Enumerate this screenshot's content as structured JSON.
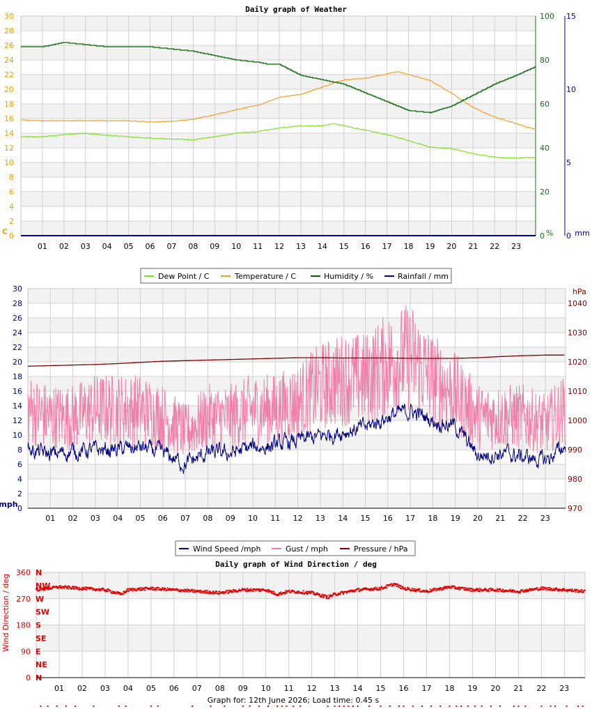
{
  "footer": "Graph for: 12th June 2026; Load time: 0.45 s",
  "chart_data": [
    {
      "type": "line",
      "title": "Daily graph of Weather",
      "x_ticks": [
        "01",
        "02",
        "03",
        "04",
        "05",
        "06",
        "07",
        "08",
        "09",
        "10",
        "11",
        "12",
        "13",
        "14",
        "15",
        "16",
        "17",
        "18",
        "19",
        "20",
        "21",
        "22",
        "23"
      ],
      "x_range": [
        0,
        23.9
      ],
      "y_left": {
        "unit": "C",
        "range": [
          0,
          30
        ],
        "ticks": [
          "0",
          "2",
          "4",
          "6",
          "8",
          "10",
          "12",
          "14",
          "16",
          "18",
          "20",
          "22",
          "24",
          "26",
          "28",
          "30"
        ],
        "color": "#e8a000"
      },
      "y_right1": {
        "unit": "%",
        "range": [
          0,
          100
        ],
        "ticks": [
          "0",
          "20",
          "40",
          "60",
          "80",
          "100"
        ],
        "color": "#1a6b1a"
      },
      "y_right2": {
        "unit": "mm",
        "range": [
          0,
          15
        ],
        "ticks": [
          "0",
          "5",
          "10",
          "15"
        ],
        "color": "#00008b"
      },
      "legend": [
        "Dew Point / C",
        "Temperature / C",
        "Humidity / %",
        "Rainfall / mm"
      ],
      "series": [
        {
          "name": "Dew Point / C",
          "color": "#7ee01e",
          "axis": "left",
          "x": [
            0,
            1,
            2,
            3,
            4,
            5,
            6,
            7,
            8,
            9,
            10,
            11,
            12,
            13,
            14,
            14.5,
            15,
            16,
            17,
            18,
            19,
            20,
            21,
            22,
            23,
            23.9
          ],
          "values": [
            13.5,
            13.5,
            13.8,
            14.0,
            13.7,
            13.5,
            13.3,
            13.2,
            13.1,
            13.5,
            14.0,
            14.2,
            14.7,
            15.0,
            15.0,
            15.3,
            15.0,
            14.4,
            13.8,
            13.0,
            12.1,
            11.9,
            11.2,
            10.7,
            10.6,
            10.7
          ]
        },
        {
          "name": "Temperature / C",
          "color": "#f0a020",
          "axis": "left",
          "x": [
            0,
            1,
            2,
            3,
            4,
            5,
            6,
            7,
            8,
            9,
            10,
            11,
            12,
            13,
            14,
            15,
            16,
            17,
            17.5,
            18,
            19,
            20,
            21,
            22,
            23,
            23.9
          ],
          "values": [
            15.8,
            15.7,
            15.7,
            15.7,
            15.7,
            15.7,
            15.5,
            15.6,
            15.9,
            16.5,
            17.2,
            17.8,
            18.9,
            19.3,
            20.3,
            21.3,
            21.5,
            22.1,
            22.4,
            22.0,
            21.2,
            19.5,
            17.5,
            16.2,
            15.3,
            14.5
          ]
        },
        {
          "name": "Humidity / %",
          "color": "#006400",
          "axis": "right1",
          "x": [
            0,
            1,
            1.5,
            2,
            3,
            4,
            5,
            6,
            7,
            8,
            9,
            10,
            11,
            11.5,
            12,
            13,
            14,
            15,
            16,
            17,
            18,
            19,
            20,
            21,
            22,
            23,
            23.9
          ],
          "values": [
            86,
            86,
            87,
            88,
            87,
            86,
            86,
            86,
            85,
            84,
            82,
            80,
            79,
            78,
            78,
            73,
            71,
            69,
            65,
            61,
            57,
            56,
            59,
            64,
            69,
            73,
            77
          ]
        },
        {
          "name": "Rainfall / mm",
          "color": "#0000aa",
          "axis": "right2",
          "x": [
            0,
            23.9
          ],
          "values": [
            0,
            0
          ]
        }
      ]
    },
    {
      "type": "line",
      "title": "",
      "x_ticks": [
        "01",
        "02",
        "03",
        "04",
        "05",
        "06",
        "07",
        "08",
        "09",
        "10",
        "11",
        "12",
        "13",
        "14",
        "15",
        "16",
        "17",
        "18",
        "19",
        "20",
        "21",
        "22",
        "23"
      ],
      "x_range": [
        0,
        23.9
      ],
      "y_left": {
        "unit": "mph",
        "range": [
          0,
          30
        ],
        "ticks": [
          "0",
          "2",
          "4",
          "6",
          "8",
          "10",
          "12",
          "14",
          "16",
          "18",
          "20",
          "22",
          "24",
          "26",
          "28",
          "30"
        ],
        "color": "#000080"
      },
      "y_right": {
        "unit": "hPa",
        "range": [
          970,
          1045
        ],
        "ticks": [
          "970",
          "980",
          "990",
          "1000",
          "1010",
          "1020",
          "1030",
          "1040"
        ],
        "color": "#800000"
      },
      "legend": [
        "Wind Speed /mph",
        "Gust / mph",
        "Pressure / hPa"
      ],
      "series": [
        {
          "name": "Wind Speed /mph",
          "color": "#000080",
          "x": [
            0,
            1,
            2,
            3,
            4,
            5,
            6,
            7,
            8,
            9,
            10,
            11,
            12,
            13,
            14,
            15,
            16,
            17,
            18,
            19,
            20,
            21,
            22,
            23,
            23.9
          ],
          "values": [
            8.0,
            7.3,
            7.8,
            7.9,
            8.0,
            8.3,
            7.5,
            6.0,
            7.5,
            7.5,
            8.3,
            8.5,
            9.2,
            9.8,
            10.5,
            11.0,
            12.5,
            13.3,
            12.0,
            11.2,
            7.2,
            7.5,
            7.0,
            6.5,
            8.5
          ]
        },
        {
          "name": "Gust / mph",
          "color": "#f080a8",
          "x": [
            0,
            1,
            2,
            3,
            4,
            5,
            6,
            7,
            8,
            9,
            10,
            11,
            12,
            13,
            14,
            15,
            16,
            17,
            18,
            19,
            20,
            21,
            22,
            23,
            23.9
          ],
          "values": [
            13,
            12,
            12,
            13,
            13,
            13,
            12,
            10,
            12,
            12,
            13,
            13,
            14,
            16,
            17,
            17,
            19,
            20,
            17,
            15,
            12,
            12,
            12,
            11,
            13
          ]
        },
        {
          "name": "Pressure / hPa",
          "color": "#800000",
          "x": [
            0,
            1,
            2,
            3,
            4,
            5,
            6,
            7,
            8,
            9,
            10,
            11,
            12,
            13,
            14,
            15,
            16,
            17,
            18,
            19,
            20,
            21,
            22,
            23,
            23.9
          ],
          "values": [
            1018.5,
            1018.7,
            1018.9,
            1019.1,
            1019.4,
            1019.8,
            1020.2,
            1020.4,
            1020.6,
            1020.8,
            1021.0,
            1021.2,
            1021.4,
            1021.4,
            1021.3,
            1021.3,
            1021.3,
            1021.2,
            1021.2,
            1021.2,
            1021.4,
            1021.8,
            1022.1,
            1022.3,
            1022.3
          ]
        }
      ]
    },
    {
      "type": "scatter",
      "title": "Daily graph of Wind Direction / deg",
      "ylabel": "Wind Direction / deg",
      "x_ticks": [
        "01",
        "02",
        "03",
        "04",
        "05",
        "06",
        "07",
        "08",
        "09",
        "10",
        "11",
        "12",
        "13",
        "14",
        "15",
        "16",
        "17",
        "18",
        "19",
        "20",
        "21",
        "22",
        "23"
      ],
      "x_range": [
        0,
        23.9
      ],
      "y_range": [
        0,
        360
      ],
      "y_ticks": [
        "0",
        "90",
        "180",
        "270",
        "360"
      ],
      "compass_labels": [
        "N",
        "NW",
        "W",
        "SW",
        "S",
        "SE",
        "E",
        "NE",
        "N"
      ],
      "series": [
        {
          "name": "",
          "color": "#e00000",
          "x": [
            0,
            1,
            2,
            3,
            3.7,
            4,
            5,
            6,
            7,
            8,
            9,
            10,
            10.5,
            11,
            12,
            12.7,
            13,
            14,
            15,
            15.6,
            16,
            17,
            18,
            19,
            20,
            21,
            22,
            23,
            23.9
          ],
          "values": [
            300,
            310,
            305,
            300,
            285,
            300,
            305,
            300,
            295,
            290,
            300,
            300,
            285,
            295,
            290,
            275,
            285,
            300,
            305,
            320,
            305,
            295,
            310,
            300,
            300,
            295,
            305,
            300,
            295
          ]
        }
      ]
    }
  ]
}
